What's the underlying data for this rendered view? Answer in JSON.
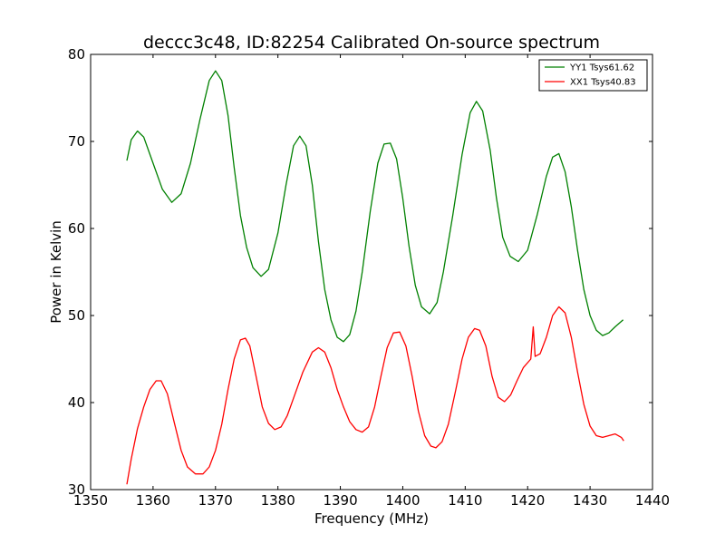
{
  "chart_data": {
    "type": "line",
    "title": "deccc3c48, ID:82254 Calibrated On-source spectrum",
    "xlabel": "Frequency (MHz)",
    "ylabel": "Power in Kelvin",
    "xlim": [
      1350,
      1440
    ],
    "ylim": [
      30,
      80
    ],
    "xticks": [
      1350,
      1360,
      1370,
      1380,
      1390,
      1400,
      1410,
      1420,
      1430,
      1440
    ],
    "yticks": [
      30,
      40,
      50,
      60,
      70,
      80
    ],
    "grid": false,
    "legend_position": "top-right",
    "series": [
      {
        "name": "YY1 Tsys61.62",
        "color": "#008000",
        "points": [
          [
            1355.8,
            67.8
          ],
          [
            1356.5,
            70.2
          ],
          [
            1357.5,
            71.2
          ],
          [
            1358.5,
            70.5
          ],
          [
            1360.0,
            67.5
          ],
          [
            1361.5,
            64.5
          ],
          [
            1363.0,
            63.0
          ],
          [
            1364.5,
            64.0
          ],
          [
            1366.0,
            67.5
          ],
          [
            1367.5,
            72.5
          ],
          [
            1369.0,
            77.0
          ],
          [
            1370.0,
            78.1
          ],
          [
            1371.0,
            77.0
          ],
          [
            1372.0,
            73.0
          ],
          [
            1373.0,
            67.0
          ],
          [
            1374.0,
            61.5
          ],
          [
            1375.0,
            57.8
          ],
          [
            1376.0,
            55.5
          ],
          [
            1377.3,
            54.5
          ],
          [
            1378.5,
            55.3
          ],
          [
            1380.0,
            59.5
          ],
          [
            1381.3,
            65.0
          ],
          [
            1382.5,
            69.5
          ],
          [
            1383.5,
            70.6
          ],
          [
            1384.5,
            69.5
          ],
          [
            1385.5,
            65.0
          ],
          [
            1386.5,
            58.5
          ],
          [
            1387.5,
            53.0
          ],
          [
            1388.5,
            49.5
          ],
          [
            1389.5,
            47.5
          ],
          [
            1390.5,
            47.0
          ],
          [
            1391.5,
            47.8
          ],
          [
            1392.5,
            50.5
          ],
          [
            1393.5,
            55.0
          ],
          [
            1394.8,
            62.0
          ],
          [
            1396.0,
            67.5
          ],
          [
            1397.0,
            69.7
          ],
          [
            1398.0,
            69.8
          ],
          [
            1399.0,
            68.0
          ],
          [
            1400.0,
            63.5
          ],
          [
            1401.0,
            58.0
          ],
          [
            1402.0,
            53.5
          ],
          [
            1403.0,
            51.0
          ],
          [
            1404.3,
            50.2
          ],
          [
            1405.5,
            51.5
          ],
          [
            1406.5,
            55.0
          ],
          [
            1408.0,
            61.5
          ],
          [
            1409.5,
            68.5
          ],
          [
            1410.8,
            73.3
          ],
          [
            1411.8,
            74.6
          ],
          [
            1412.8,
            73.5
          ],
          [
            1414.0,
            69.0
          ],
          [
            1415.0,
            63.5
          ],
          [
            1416.0,
            59.0
          ],
          [
            1417.2,
            56.8
          ],
          [
            1418.5,
            56.2
          ],
          [
            1420.0,
            57.5
          ],
          [
            1421.5,
            61.5
          ],
          [
            1423.0,
            66.0
          ],
          [
            1424.0,
            68.2
          ],
          [
            1425.0,
            68.6
          ],
          [
            1426.0,
            66.5
          ],
          [
            1427.0,
            62.5
          ],
          [
            1428.0,
            57.5
          ],
          [
            1429.0,
            53.0
          ],
          [
            1430.0,
            50.0
          ],
          [
            1431.0,
            48.3
          ],
          [
            1432.0,
            47.7
          ],
          [
            1433.0,
            48.0
          ],
          [
            1434.0,
            48.7
          ],
          [
            1435.3,
            49.5
          ]
        ]
      },
      {
        "name": "XX1 Tsys40.83",
        "color": "#ff0000",
        "points": [
          [
            1355.8,
            30.6
          ],
          [
            1356.5,
            33.5
          ],
          [
            1357.5,
            37.0
          ],
          [
            1358.5,
            39.5
          ],
          [
            1359.5,
            41.5
          ],
          [
            1360.5,
            42.5
          ],
          [
            1361.3,
            42.5
          ],
          [
            1362.3,
            41.0
          ],
          [
            1363.3,
            38.0
          ],
          [
            1364.5,
            34.5
          ],
          [
            1365.5,
            32.6
          ],
          [
            1366.8,
            31.8
          ],
          [
            1368.0,
            31.8
          ],
          [
            1369.0,
            32.6
          ],
          [
            1370.0,
            34.5
          ],
          [
            1371.0,
            37.5
          ],
          [
            1372.0,
            41.5
          ],
          [
            1373.0,
            45.0
          ],
          [
            1374.0,
            47.2
          ],
          [
            1374.8,
            47.4
          ],
          [
            1375.5,
            46.5
          ],
          [
            1376.5,
            43.0
          ],
          [
            1377.5,
            39.5
          ],
          [
            1378.5,
            37.6
          ],
          [
            1379.5,
            36.9
          ],
          [
            1380.5,
            37.2
          ],
          [
            1381.5,
            38.5
          ],
          [
            1382.5,
            40.5
          ],
          [
            1384.0,
            43.5
          ],
          [
            1385.5,
            45.8
          ],
          [
            1386.5,
            46.3
          ],
          [
            1387.5,
            45.8
          ],
          [
            1388.5,
            44.0
          ],
          [
            1389.5,
            41.5
          ],
          [
            1390.5,
            39.5
          ],
          [
            1391.5,
            37.8
          ],
          [
            1392.5,
            36.9
          ],
          [
            1393.5,
            36.6
          ],
          [
            1394.5,
            37.2
          ],
          [
            1395.5,
            39.5
          ],
          [
            1396.5,
            43.0
          ],
          [
            1397.5,
            46.3
          ],
          [
            1398.5,
            48.0
          ],
          [
            1399.5,
            48.1
          ],
          [
            1400.5,
            46.5
          ],
          [
            1401.5,
            43.0
          ],
          [
            1402.5,
            39.0
          ],
          [
            1403.5,
            36.2
          ],
          [
            1404.5,
            35.0
          ],
          [
            1405.3,
            34.8
          ],
          [
            1406.3,
            35.5
          ],
          [
            1407.3,
            37.5
          ],
          [
            1408.5,
            41.5
          ],
          [
            1409.5,
            45.0
          ],
          [
            1410.5,
            47.5
          ],
          [
            1411.5,
            48.5
          ],
          [
            1412.3,
            48.3
          ],
          [
            1413.3,
            46.5
          ],
          [
            1414.3,
            43.0
          ],
          [
            1415.3,
            40.6
          ],
          [
            1416.3,
            40.1
          ],
          [
            1417.3,
            40.9
          ],
          [
            1418.3,
            42.5
          ],
          [
            1419.3,
            44.0
          ],
          [
            1420.5,
            45.0
          ],
          [
            1420.9,
            48.7
          ],
          [
            1421.2,
            45.3
          ],
          [
            1422.0,
            45.6
          ],
          [
            1423.0,
            47.5
          ],
          [
            1424.0,
            50.0
          ],
          [
            1425.0,
            51.0
          ],
          [
            1426.0,
            50.3
          ],
          [
            1427.0,
            47.5
          ],
          [
            1428.0,
            43.5
          ],
          [
            1429.0,
            39.8
          ],
          [
            1430.0,
            37.3
          ],
          [
            1431.0,
            36.2
          ],
          [
            1432.0,
            36.0
          ],
          [
            1433.0,
            36.2
          ],
          [
            1434.0,
            36.4
          ],
          [
            1435.0,
            36.0
          ],
          [
            1435.4,
            35.6
          ]
        ]
      }
    ]
  }
}
